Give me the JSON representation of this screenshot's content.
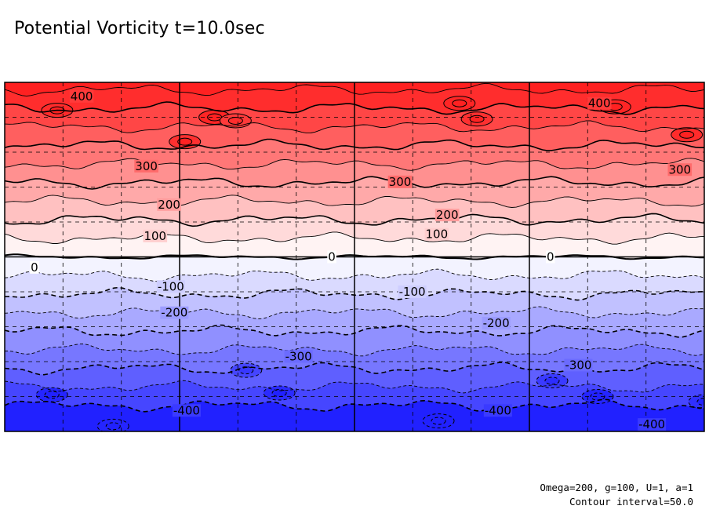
{
  "chart_data": {
    "type": "contour",
    "title": "Potential Vorticity  t=10.0sec",
    "variable": "Potential Vorticity",
    "time": "t=10.0sec",
    "contour_interval": 50.0,
    "levels": [
      -400,
      -350,
      -300,
      -250,
      -200,
      -150,
      -100,
      -50,
      0,
      50,
      100,
      150,
      200,
      250,
      300,
      350,
      400,
      450
    ],
    "labeled_contours": [
      {
        "text": "400",
        "value": 400,
        "x": 0.44,
        "y": 0.92
      },
      {
        "text": "400",
        "value": 400,
        "x": 3.4,
        "y": 0.88
      },
      {
        "text": "300",
        "value": 300,
        "x": 0.81,
        "y": 0.52
      },
      {
        "text": "300",
        "value": 300,
        "x": 2.26,
        "y": 0.43
      },
      {
        "text": "300",
        "value": 300,
        "x": 3.86,
        "y": 0.5
      },
      {
        "text": "200",
        "value": 200,
        "x": 0.94,
        "y": 0.3
      },
      {
        "text": "200",
        "value": 200,
        "x": 2.53,
        "y": 0.24
      },
      {
        "text": "100",
        "value": 100,
        "x": 0.86,
        "y": 0.12
      },
      {
        "text": "100",
        "value": 100,
        "x": 2.47,
        "y": 0.13
      },
      {
        "text": "0",
        "value": 0,
        "x": 0.17,
        "y": -0.06
      },
      {
        "text": "0",
        "value": 0,
        "x": 1.87,
        "y": 0.0
      },
      {
        "text": "0",
        "value": 0,
        "x": 3.12,
        "y": 0.0
      },
      {
        "text": "-100",
        "value": -100,
        "x": 0.95,
        "y": -0.17
      },
      {
        "text": "-100",
        "value": -100,
        "x": 2.33,
        "y": -0.2
      },
      {
        "text": "-200",
        "value": -200,
        "x": 0.97,
        "y": -0.32
      },
      {
        "text": "-200",
        "value": -200,
        "x": 2.81,
        "y": -0.38
      },
      {
        "text": "-300",
        "value": -300,
        "x": 1.68,
        "y": -0.57
      },
      {
        "text": "-300",
        "value": -300,
        "x": 3.28,
        "y": -0.62
      },
      {
        "text": "-400",
        "value": -400,
        "x": 1.04,
        "y": -0.88
      },
      {
        "text": "-400",
        "value": -400,
        "x": 2.82,
        "y": -0.88
      },
      {
        "text": "-400",
        "value": -400,
        "x": 3.7,
        "y": -0.96
      }
    ],
    "colormap": {
      "negative": "#2121ff",
      "zero": "#ffffff",
      "positive": "#ff2121"
    },
    "grid": true,
    "xlim": [
      0,
      4
    ],
    "ylim": [
      -1,
      1
    ],
    "x_major_ticks": [
      1,
      2,
      3
    ],
    "x_minor_ticks": [
      0.333,
      0.667,
      1.333,
      1.667,
      2.333,
      2.667,
      3.333,
      3.667
    ],
    "y_major_ticks": [
      0
    ],
    "y_minor_ticks": [
      -0.8,
      -0.6,
      -0.4,
      -0.2,
      0.2,
      0.4,
      0.6,
      0.8
    ]
  },
  "footer": {
    "params": "Omega=200, g=100, U=1, a=1",
    "interval": "Contour interval=50.0"
  }
}
